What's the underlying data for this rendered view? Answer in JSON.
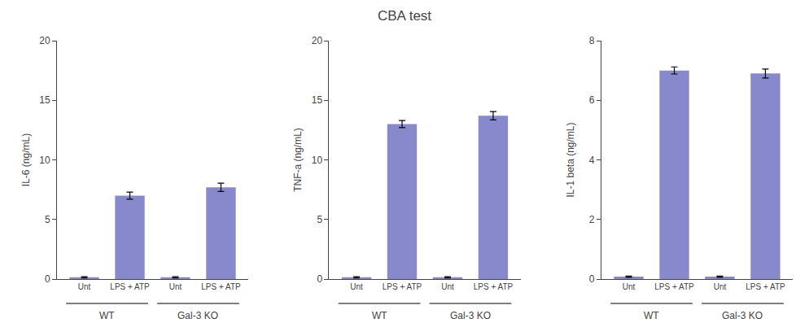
{
  "title": "CBA test",
  "chart_data": [
    {
      "type": "bar",
      "ylabel": "IL-6 (ng/mL)",
      "categories": [
        "Unt",
        "LPS + ATP",
        "Unt",
        "LPS + ATP"
      ],
      "values": [
        0.15,
        7.0,
        0.15,
        7.7
      ],
      "errors": [
        0.05,
        0.3,
        0.05,
        0.35
      ],
      "annotations": [
        "WT",
        "Gal-3 KO"
      ],
      "color": "#8888cc",
      "ylim": [
        0,
        20
      ],
      "yticks": [
        0,
        5,
        10,
        15,
        20
      ],
      "grid": false
    },
    {
      "type": "bar",
      "ylabel": "TNF-a (ng/mL)",
      "categories": [
        "Unt",
        "LPS + ATP",
        "Unt",
        "LPS + ATP"
      ],
      "values": [
        0.15,
        13.0,
        0.15,
        13.7
      ],
      "errors": [
        0.05,
        0.3,
        0.05,
        0.35
      ],
      "annotations": [
        "WT",
        "Gal-3 KO"
      ],
      "color": "#8888cc",
      "ylim": [
        0,
        20
      ],
      "yticks": [
        0,
        5,
        10,
        15,
        20
      ],
      "grid": false
    },
    {
      "type": "bar",
      "ylabel": "IL-1 beta (ng/mL)",
      "categories": [
        "Unt",
        "LPS + ATP",
        "Unt",
        "LPS + ATP"
      ],
      "values": [
        0.08,
        7.0,
        0.08,
        6.9
      ],
      "errors": [
        0.02,
        0.12,
        0.02,
        0.15
      ],
      "annotations": [
        "WT",
        "Gal-3 KO"
      ],
      "color": "#8888cc",
      "ylim": [
        0,
        8
      ],
      "yticks": [
        0,
        2,
        4,
        6,
        8
      ],
      "grid": false
    }
  ]
}
